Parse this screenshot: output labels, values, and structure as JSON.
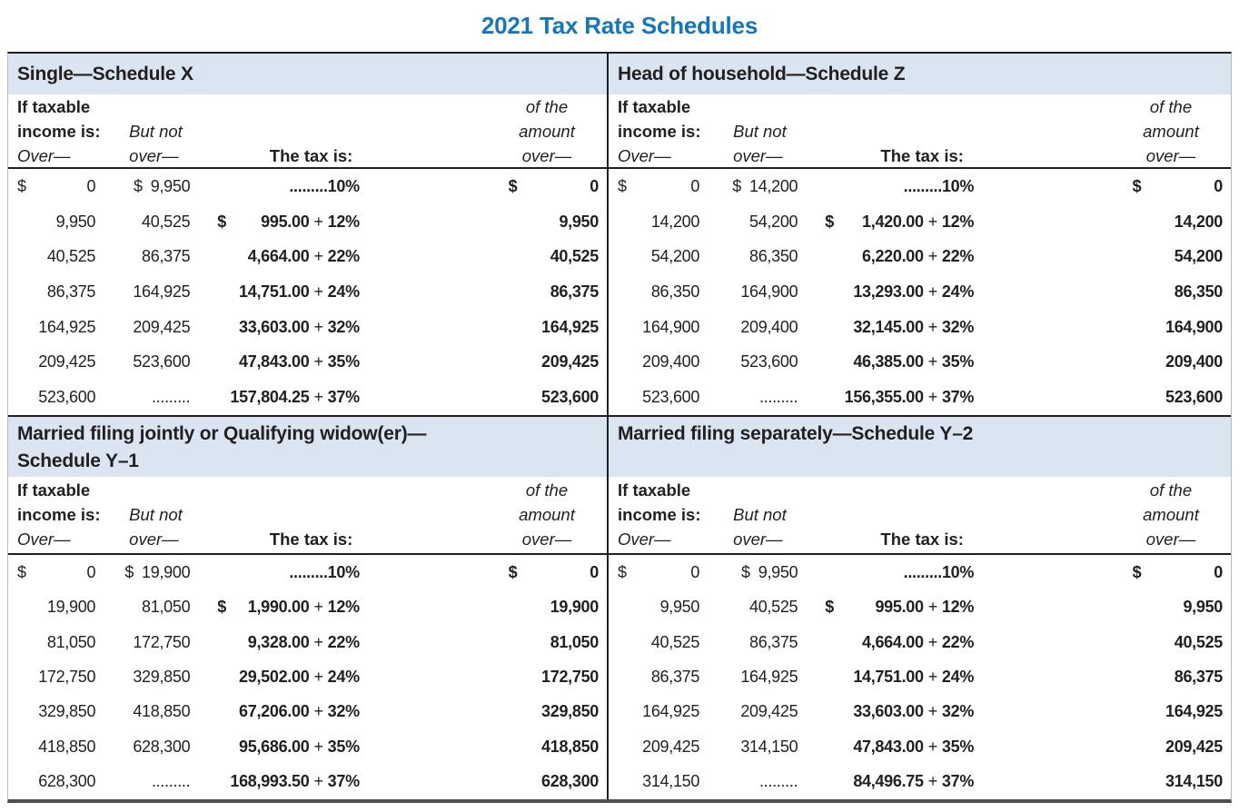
{
  "title": "2021 Tax Rate Schedules",
  "colors": {
    "title_blue": "#1476bd",
    "band_blue": "#dbe5f2",
    "text_dark": "#231f20",
    "bottom_rule_gray": "#4d4e50"
  },
  "column_headers": {
    "col1_line1": "If taxable",
    "col1_line2": "income is:",
    "col1_line3": "Over—",
    "col2_line1": "But not",
    "col2_line2": "over—",
    "col3": "The tax is:",
    "col4_line1": "of the",
    "col4_line2": "amount",
    "col4_line3": "over—"
  },
  "schedules": [
    {
      "title_line1": "Single—Schedule X",
      "title_line2": "",
      "rows": [
        {
          "op": "$",
          "o": "0",
          "bp": "$",
          "b": "9,950",
          "tp": "",
          "tb": ".........",
          "tplus": "",
          "tr": "10%",
          "ap": "$",
          "a": "0"
        },
        {
          "op": "",
          "o": "9,950",
          "bp": "",
          "b": "40,525",
          "tp": "$",
          "tb": "995.00",
          "tplus": "+",
          "tr": "12%",
          "ap": "",
          "a": "9,950"
        },
        {
          "op": "",
          "o": "40,525",
          "bp": "",
          "b": "86,375",
          "tp": "",
          "tb": "4,664.00",
          "tplus": "+",
          "tr": "22%",
          "ap": "",
          "a": "40,525"
        },
        {
          "op": "",
          "o": "86,375",
          "bp": "",
          "b": "164,925",
          "tp": "",
          "tb": "14,751.00",
          "tplus": "+",
          "tr": "24%",
          "ap": "",
          "a": "86,375"
        },
        {
          "op": "",
          "o": "164,925",
          "bp": "",
          "b": "209,425",
          "tp": "",
          "tb": "33,603.00",
          "tplus": "+",
          "tr": "32%",
          "ap": "",
          "a": "164,925"
        },
        {
          "op": "",
          "o": "209,425",
          "bp": "",
          "b": "523,600",
          "tp": "",
          "tb": "47,843.00",
          "tplus": "+",
          "tr": "35%",
          "ap": "",
          "a": "209,425"
        },
        {
          "op": "",
          "o": "523,600",
          "bp": "",
          "b": ".........",
          "tp": "",
          "tb": "157,804.25",
          "tplus": "+",
          "tr": "37%",
          "ap": "",
          "a": "523,600"
        }
      ]
    },
    {
      "title_line1": "Head of household—Schedule Z",
      "title_line2": "",
      "rows": [
        {
          "op": "$",
          "o": "0",
          "bp": "$",
          "b": "14,200",
          "tp": "",
          "tb": ".........",
          "tplus": "",
          "tr": "10%",
          "ap": "$",
          "a": "0"
        },
        {
          "op": "",
          "o": "14,200",
          "bp": "",
          "b": "54,200",
          "tp": "$",
          "tb": "1,420.00",
          "tplus": "+",
          "tr": "12%",
          "ap": "",
          "a": "14,200"
        },
        {
          "op": "",
          "o": "54,200",
          "bp": "",
          "b": "86,350",
          "tp": "",
          "tb": "6,220.00",
          "tplus": "+",
          "tr": "22%",
          "ap": "",
          "a": "54,200"
        },
        {
          "op": "",
          "o": "86,350",
          "bp": "",
          "b": "164,900",
          "tp": "",
          "tb": "13,293.00",
          "tplus": "+",
          "tr": "24%",
          "ap": "",
          "a": "86,350"
        },
        {
          "op": "",
          "o": "164,900",
          "bp": "",
          "b": "209,400",
          "tp": "",
          "tb": "32,145.00",
          "tplus": "+",
          "tr": "32%",
          "ap": "",
          "a": "164,900"
        },
        {
          "op": "",
          "o": "209,400",
          "bp": "",
          "b": "523,600",
          "tp": "",
          "tb": "46,385.00",
          "tplus": "+",
          "tr": "35%",
          "ap": "",
          "a": "209,400"
        },
        {
          "op": "",
          "o": "523,600",
          "bp": "",
          "b": ".........",
          "tp": "",
          "tb": "156,355.00",
          "tplus": "+",
          "tr": "37%",
          "ap": "",
          "a": "523,600"
        }
      ]
    },
    {
      "title_line1": "Married filing jointly or Qualifying widow(er)—",
      "title_line2": "Schedule Y–1",
      "rows": [
        {
          "op": "$",
          "o": "0",
          "bp": "$",
          "b": "19,900",
          "tp": "",
          "tb": ".........",
          "tplus": "",
          "tr": "10%",
          "ap": "$",
          "a": "0"
        },
        {
          "op": "",
          "o": "19,900",
          "bp": "",
          "b": "81,050",
          "tp": "$",
          "tb": "1,990.00",
          "tplus": "+",
          "tr": "12%",
          "ap": "",
          "a": "19,900"
        },
        {
          "op": "",
          "o": "81,050",
          "bp": "",
          "b": "172,750",
          "tp": "",
          "tb": "9,328.00",
          "tplus": "+",
          "tr": "22%",
          "ap": "",
          "a": "81,050"
        },
        {
          "op": "",
          "o": "172,750",
          "bp": "",
          "b": "329,850",
          "tp": "",
          "tb": "29,502.00",
          "tplus": "+",
          "tr": "24%",
          "ap": "",
          "a": "172,750"
        },
        {
          "op": "",
          "o": "329,850",
          "bp": "",
          "b": "418,850",
          "tp": "",
          "tb": "67,206.00",
          "tplus": "+",
          "tr": "32%",
          "ap": "",
          "a": "329,850"
        },
        {
          "op": "",
          "o": "418,850",
          "bp": "",
          "b": "628,300",
          "tp": "",
          "tb": "95,686.00",
          "tplus": "+",
          "tr": "35%",
          "ap": "",
          "a": "418,850"
        },
        {
          "op": "",
          "o": "628,300",
          "bp": "",
          "b": ".........",
          "tp": "",
          "tb": "168,993.50",
          "tplus": "+",
          "tr": "37%",
          "ap": "",
          "a": "628,300"
        }
      ]
    },
    {
      "title_line1": "Married filing separately—Schedule Y–2",
      "title_line2": "",
      "rows": [
        {
          "op": "$",
          "o": "0",
          "bp": "$",
          "b": "9,950",
          "tp": "",
          "tb": ".........",
          "tplus": "",
          "tr": "10%",
          "ap": "$",
          "a": "0"
        },
        {
          "op": "",
          "o": "9,950",
          "bp": "",
          "b": "40,525",
          "tp": "$",
          "tb": "995.00",
          "tplus": "+",
          "tr": "12%",
          "ap": "",
          "a": "9,950"
        },
        {
          "op": "",
          "o": "40,525",
          "bp": "",
          "b": "86,375",
          "tp": "",
          "tb": "4,664.00",
          "tplus": "+",
          "tr": "22%",
          "ap": "",
          "a": "40,525"
        },
        {
          "op": "",
          "o": "86,375",
          "bp": "",
          "b": "164,925",
          "tp": "",
          "tb": "14,751.00",
          "tplus": "+",
          "tr": "24%",
          "ap": "",
          "a": "86,375"
        },
        {
          "op": "",
          "o": "164,925",
          "bp": "",
          "b": "209,425",
          "tp": "",
          "tb": "33,603.00",
          "tplus": "+",
          "tr": "32%",
          "ap": "",
          "a": "164,925"
        },
        {
          "op": "",
          "o": "209,425",
          "bp": "",
          "b": "314,150",
          "tp": "",
          "tb": "47,843.00",
          "tplus": "+",
          "tr": "35%",
          "ap": "",
          "a": "209,425"
        },
        {
          "op": "",
          "o": "314,150",
          "bp": "",
          "b": ".........",
          "tp": "",
          "tb": "84,496.75",
          "tplus": "+",
          "tr": "37%",
          "ap": "",
          "a": "314,150"
        }
      ]
    }
  ]
}
